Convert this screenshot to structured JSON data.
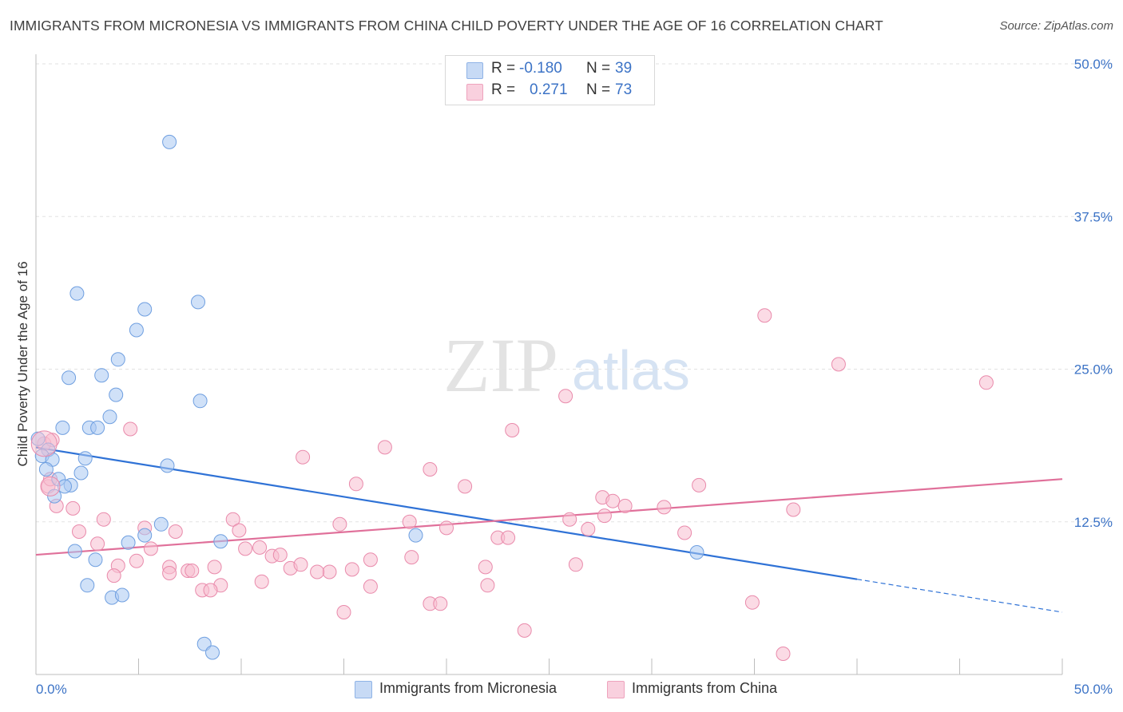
{
  "title": "IMMIGRANTS FROM MICRONESIA VS IMMIGRANTS FROM CHINA CHILD POVERTY UNDER THE AGE OF 16 CORRELATION CHART",
  "source": "Source: ZipAtlas.com",
  "watermark": {
    "zip": "ZIP",
    "atlas": "atlas"
  },
  "legend": {
    "r_label": "R =",
    "n_label": "N =",
    "rows": [
      {
        "r": "-0.180",
        "n": "39",
        "color": "#a9c8f2"
      },
      {
        "r": "0.271",
        "n": "73",
        "color": "#f7bdd0"
      }
    ]
  },
  "chart_data": {
    "type": "scatter",
    "ylabel": "Child Poverty Under the Age of 16",
    "xlim": [
      0,
      50
    ],
    "ylim": [
      0,
      50
    ],
    "x_tick_labels": [
      "0.0%",
      "50.0%"
    ],
    "y_ticks": [
      {
        "value": 12.5,
        "label": "12.5%"
      },
      {
        "value": 25.0,
        "label": "25.0%"
      },
      {
        "value": 37.5,
        "label": "37.5%"
      },
      {
        "value": 50.0,
        "label": "50.0%"
      }
    ],
    "grid": "horizontal dashed",
    "series": [
      {
        "name": "Immigrants from Micronesia",
        "color": "#a9c8f2",
        "stroke": "#6f9fe0",
        "line_color": "#2f72d6",
        "trend": {
          "x0": 0.0,
          "y0": 18.6,
          "x1": 40.0,
          "y1": 7.8,
          "dash_to_x": 50.0,
          "dash_to_y": 5.1
        },
        "points": [
          [
            6.5,
            43.6
          ],
          [
            2.0,
            31.2
          ],
          [
            5.3,
            29.9
          ],
          [
            7.9,
            30.5
          ],
          [
            4.9,
            28.2
          ],
          [
            4.0,
            25.8
          ],
          [
            3.2,
            24.5
          ],
          [
            1.6,
            24.3
          ],
          [
            3.9,
            22.9
          ],
          [
            8.0,
            22.4
          ],
          [
            3.6,
            21.1
          ],
          [
            1.3,
            20.2
          ],
          [
            2.6,
            20.2
          ],
          [
            3.0,
            20.2
          ],
          [
            0.1,
            19.3
          ],
          [
            0.6,
            18.4
          ],
          [
            0.3,
            17.9
          ],
          [
            0.8,
            17.6
          ],
          [
            2.4,
            17.7
          ],
          [
            6.4,
            17.1
          ],
          [
            0.5,
            16.8
          ],
          [
            2.2,
            16.5
          ],
          [
            1.1,
            16.0
          ],
          [
            1.7,
            15.5
          ],
          [
            1.4,
            15.4
          ],
          [
            0.9,
            14.6
          ],
          [
            6.1,
            12.3
          ],
          [
            5.3,
            11.4
          ],
          [
            4.5,
            10.8
          ],
          [
            9.0,
            10.9
          ],
          [
            18.5,
            11.4
          ],
          [
            1.9,
            10.1
          ],
          [
            2.9,
            9.4
          ],
          [
            32.2,
            10.0
          ],
          [
            2.5,
            7.3
          ],
          [
            3.7,
            6.3
          ],
          [
            4.2,
            6.5
          ],
          [
            8.2,
            2.5
          ],
          [
            8.6,
            1.8
          ]
        ]
      },
      {
        "name": "Immigrants from China",
        "color": "#f7bdd0",
        "stroke": "#e98aab",
        "line_color": "#e0709a",
        "trend": {
          "x0": 0.0,
          "y0": 9.8,
          "x1": 50.0,
          "y1": 16.0
        },
        "points": [
          [
            35.5,
            29.4
          ],
          [
            39.1,
            25.4
          ],
          [
            46.3,
            23.9
          ],
          [
            25.8,
            22.8
          ],
          [
            4.6,
            20.1
          ],
          [
            23.2,
            20.0
          ],
          [
            0.4,
            18.9
          ],
          [
            17.0,
            18.6
          ],
          [
            13.0,
            17.8
          ],
          [
            19.2,
            16.8
          ],
          [
            15.6,
            15.6
          ],
          [
            20.9,
            15.4
          ],
          [
            32.3,
            15.5
          ],
          [
            0.6,
            15.4
          ],
          [
            27.6,
            14.5
          ],
          [
            28.1,
            14.2
          ],
          [
            1.0,
            13.8
          ],
          [
            28.7,
            13.8
          ],
          [
            30.6,
            13.7
          ],
          [
            1.8,
            13.6
          ],
          [
            36.9,
            13.5
          ],
          [
            3.3,
            12.7
          ],
          [
            9.6,
            12.7
          ],
          [
            27.7,
            13.0
          ],
          [
            26.0,
            12.7
          ],
          [
            14.8,
            12.3
          ],
          [
            18.2,
            12.5
          ],
          [
            20.0,
            12.0
          ],
          [
            5.3,
            12.0
          ],
          [
            2.1,
            11.7
          ],
          [
            6.8,
            11.7
          ],
          [
            9.9,
            11.8
          ],
          [
            26.9,
            11.9
          ],
          [
            31.6,
            11.6
          ],
          [
            22.5,
            11.2
          ],
          [
            23.0,
            11.2
          ],
          [
            3.0,
            10.7
          ],
          [
            5.6,
            10.3
          ],
          [
            10.2,
            10.3
          ],
          [
            10.9,
            10.4
          ],
          [
            11.5,
            9.7
          ],
          [
            11.9,
            9.8
          ],
          [
            18.3,
            9.6
          ],
          [
            4.9,
            9.3
          ],
          [
            16.3,
            9.4
          ],
          [
            4.0,
            8.9
          ],
          [
            3.8,
            8.1
          ],
          [
            6.5,
            8.8
          ],
          [
            8.7,
            8.8
          ],
          [
            12.4,
            8.7
          ],
          [
            12.9,
            9.0
          ],
          [
            15.4,
            8.6
          ],
          [
            21.9,
            8.8
          ],
          [
            26.3,
            9.0
          ],
          [
            6.5,
            8.3
          ],
          [
            7.4,
            8.5
          ],
          [
            7.6,
            8.5
          ],
          [
            14.3,
            8.4
          ],
          [
            13.7,
            8.4
          ],
          [
            11.0,
            7.6
          ],
          [
            9.0,
            7.3
          ],
          [
            16.3,
            7.2
          ],
          [
            22.0,
            7.3
          ],
          [
            8.1,
            6.9
          ],
          [
            8.5,
            6.9
          ],
          [
            19.2,
            5.8
          ],
          [
            19.7,
            5.8
          ],
          [
            15.0,
            5.1
          ],
          [
            34.9,
            5.9
          ],
          [
            23.8,
            3.6
          ],
          [
            36.4,
            1.7
          ],
          [
            0.8,
            19.2
          ],
          [
            0.7,
            16.0
          ]
        ]
      }
    ]
  }
}
